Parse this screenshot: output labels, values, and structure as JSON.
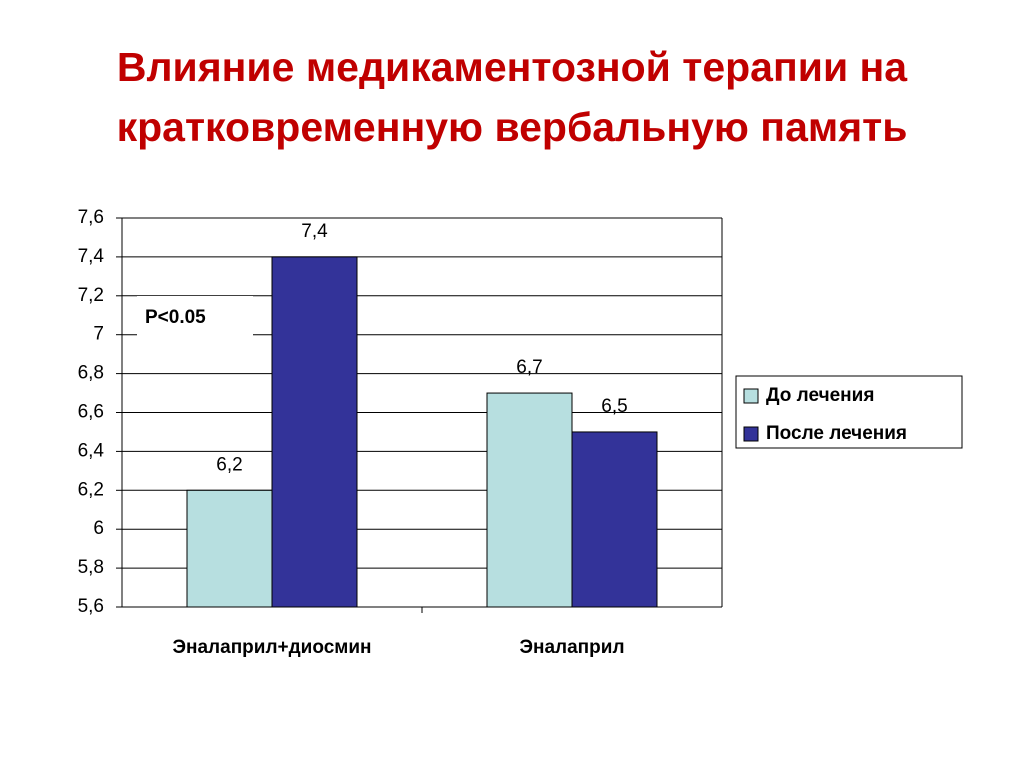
{
  "chart_data": {
    "type": "bar",
    "title": [
      "Влияние медикаментозной терапии на",
      "кратковременную вербальную память"
    ],
    "annotation": "P<0.05",
    "categories": [
      "Эналаприл+диосмин",
      "Эналаприл"
    ],
    "series": [
      {
        "name": "До лечения",
        "color": "#b7dfe0",
        "values": [
          6.2,
          6.7
        ],
        "value_labels": [
          "6,2",
          "6,7"
        ]
      },
      {
        "name": "После лечения",
        "color": "#333399",
        "values": [
          7.4,
          6.5
        ],
        "value_labels": [
          "7,4",
          "6,5"
        ]
      }
    ],
    "ylim": [
      5.6,
      7.6
    ],
    "yticks": [
      {
        "value": 5.6,
        "label": "5,6"
      },
      {
        "value": 5.8,
        "label": "5,8"
      },
      6,
      {
        "value": 6.2,
        "label": "6,2"
      },
      {
        "value": 6.4,
        "label": "6,4"
      },
      {
        "value": 6.6,
        "label": "6,6"
      },
      {
        "value": 6.8,
        "label": "6,8"
      },
      7,
      {
        "value": 7.2,
        "label": "7,2"
      },
      {
        "value": 7.4,
        "label": "7,4"
      },
      {
        "value": 7.6,
        "label": "7,6"
      }
    ],
    "grid": true,
    "legend": "right"
  }
}
